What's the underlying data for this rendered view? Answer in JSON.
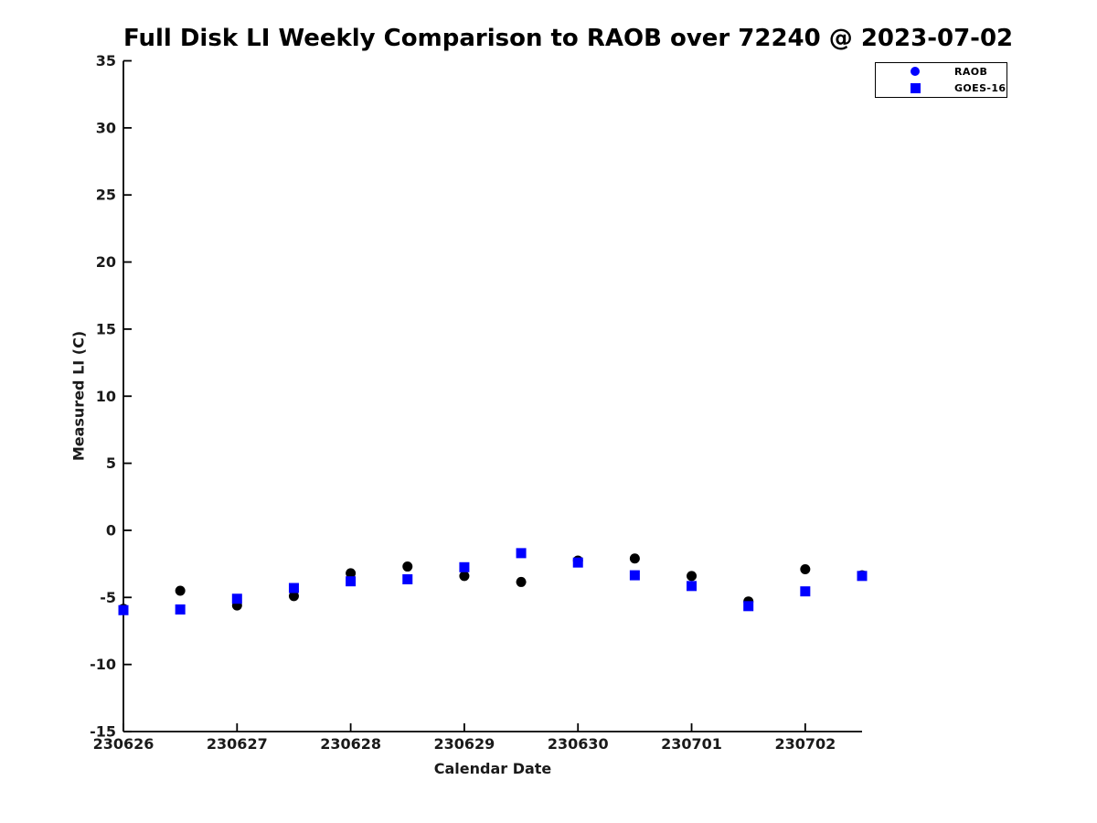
{
  "figure": {
    "background": "#ffffff"
  },
  "chart_data": {
    "type": "scatter",
    "title": "Full Disk LI Weekly Comparison to RAOB over 72240 @ 2023-07-02",
    "xlabel": "Calendar Date",
    "ylabel": "Measured LI (C)",
    "ylim": [
      -15,
      35
    ],
    "ytick_interval": 5,
    "ytick_values": [
      -15,
      -10,
      -5,
      0,
      5,
      10,
      15,
      20,
      25,
      30,
      35
    ],
    "x_tick_labels": [
      "230626",
      "230627",
      "230628",
      "230629",
      "230630",
      "230701",
      "230702"
    ],
    "x_tick_positions_days": [
      0,
      1,
      2,
      3,
      4,
      5,
      6
    ],
    "x_range_days": [
      0,
      6.5
    ],
    "grid": false,
    "legend_position": "top-right",
    "axis_color": "#000000",
    "series": [
      {
        "name": "RAOB",
        "marker": "circle",
        "marker_color": "#000000",
        "legend_marker_color": "#0000ff",
        "points": [
          {
            "day": 0.0,
            "value": -5.85
          },
          {
            "day": 0.5,
            "value": -4.5
          },
          {
            "day": 1.0,
            "value": -5.6
          },
          {
            "day": 1.5,
            "value": -4.9
          },
          {
            "day": 2.0,
            "value": -3.2
          },
          {
            "day": 2.5,
            "value": -2.7
          },
          {
            "day": 3.0,
            "value": -3.4
          },
          {
            "day": 3.5,
            "value": -3.85
          },
          {
            "day": 4.0,
            "value": -2.25
          },
          {
            "day": 4.5,
            "value": -2.1
          },
          {
            "day": 5.0,
            "value": -3.4
          },
          {
            "day": 5.5,
            "value": -5.3
          },
          {
            "day": 6.0,
            "value": -2.9
          },
          {
            "day": 6.5,
            "value": -3.35
          }
        ]
      },
      {
        "name": "GOES-16",
        "marker": "square",
        "marker_color": "#0000ff",
        "legend_marker_color": "#0000ff",
        "points": [
          {
            "day": 0.0,
            "value": -5.95
          },
          {
            "day": 0.5,
            "value": -5.9
          },
          {
            "day": 1.0,
            "value": -5.1
          },
          {
            "day": 1.5,
            "value": -4.3
          },
          {
            "day": 2.0,
            "value": -3.8
          },
          {
            "day": 2.5,
            "value": -3.65
          },
          {
            "day": 3.0,
            "value": -2.75
          },
          {
            "day": 3.5,
            "value": -1.7
          },
          {
            "day": 4.0,
            "value": -2.4
          },
          {
            "day": 4.5,
            "value": -3.35
          },
          {
            "day": 5.0,
            "value": -4.15
          },
          {
            "day": 5.5,
            "value": -5.65
          },
          {
            "day": 6.0,
            "value": -4.55
          },
          {
            "day": 6.5,
            "value": -3.4
          }
        ]
      }
    ]
  }
}
